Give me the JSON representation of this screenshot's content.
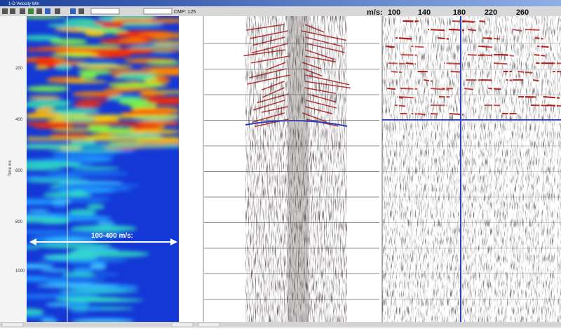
{
  "window": {
    "title": "1-D Velocity Win"
  },
  "toolbar": {
    "cmp_label": "CMP: 125"
  },
  "velocity_header": {
    "unit": "m/s:",
    "labels": [
      "100",
      "140",
      "180",
      "220",
      "260"
    ]
  },
  "semblance": {
    "axis_title": "Time ms",
    "time_labels": [
      "200",
      "400",
      "600",
      "800",
      "1000"
    ],
    "annotation": "100-400 m/s:"
  }
}
